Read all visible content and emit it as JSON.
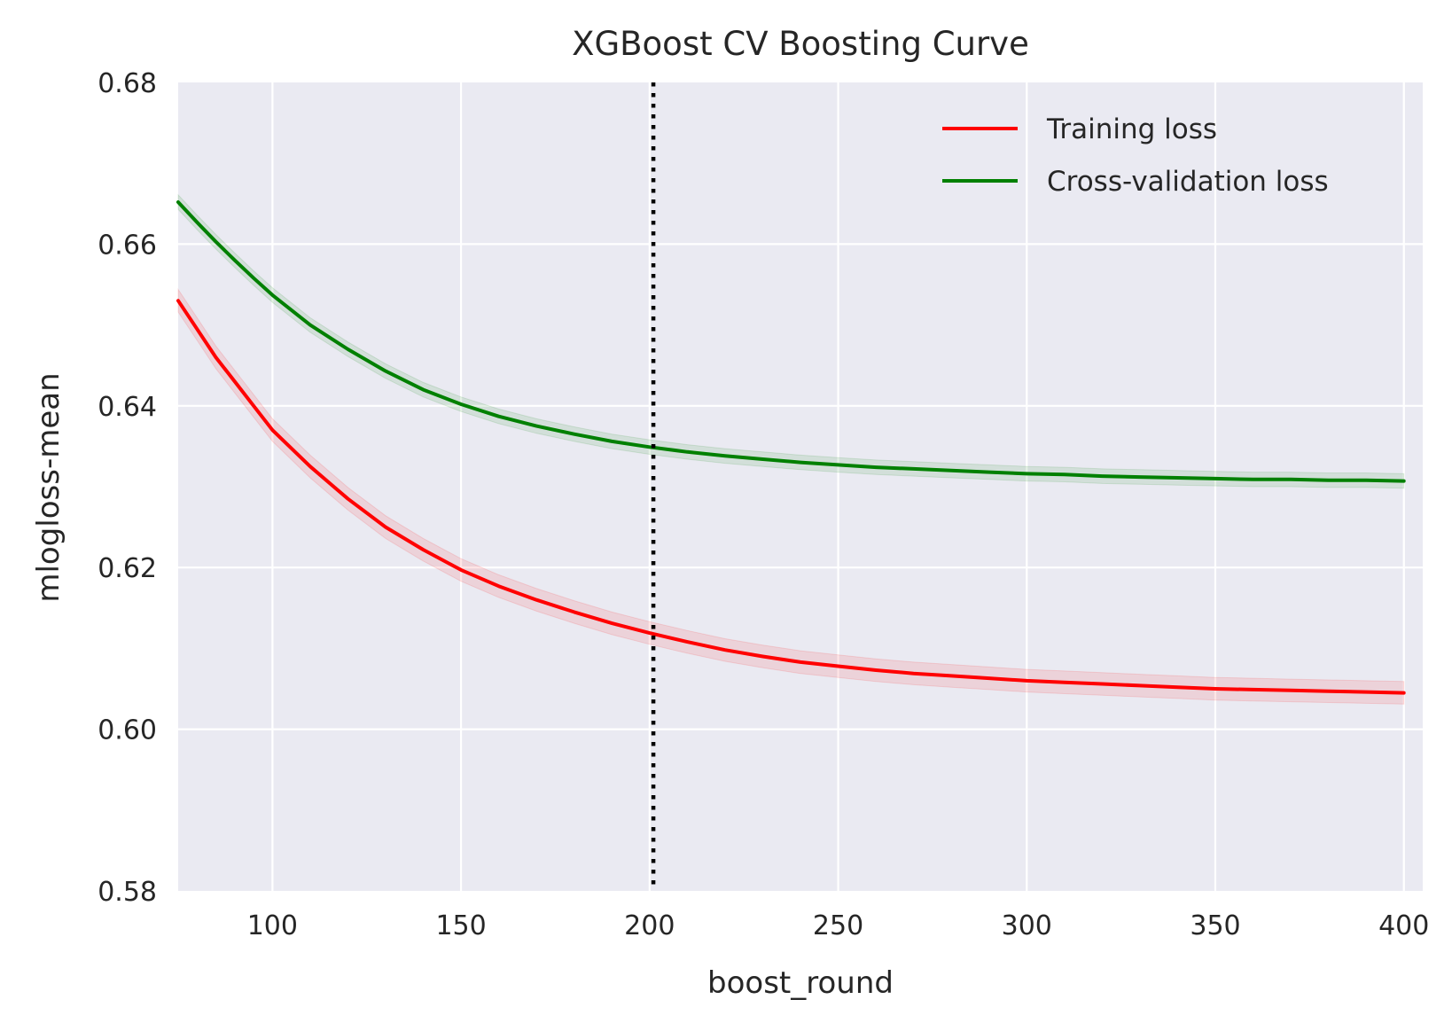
{
  "chart_data": {
    "type": "line",
    "title": "XGBoost CV Boosting Curve",
    "xlabel": "boost_round",
    "ylabel": "mlogloss-mean",
    "xlim": [
      75,
      405
    ],
    "ylim": [
      0.58,
      0.68
    ],
    "x_ticks": [
      100,
      150,
      200,
      250,
      300,
      350,
      400
    ],
    "x_tick_labels": [
      "100",
      "150",
      "200",
      "250",
      "300",
      "350",
      "400"
    ],
    "y_ticks": [
      0.58,
      0.6,
      0.62,
      0.64,
      0.66,
      0.68
    ],
    "y_tick_labels": [
      "0.58",
      "0.60",
      "0.62",
      "0.64",
      "0.66",
      "0.68"
    ],
    "grid": true,
    "background": "#eaeaf2",
    "legend_position": "top-right",
    "vline": {
      "x": 201,
      "color": "#000000",
      "style": "dotted"
    },
    "series": [
      {
        "name": "Training loss",
        "color": "#ff0000",
        "band_std": 0.0014,
        "x": [
          75,
          80,
          85,
          90,
          95,
          100,
          110,
          120,
          130,
          140,
          150,
          160,
          170,
          180,
          190,
          200,
          210,
          220,
          230,
          240,
          250,
          260,
          270,
          280,
          290,
          300,
          310,
          320,
          330,
          340,
          350,
          360,
          370,
          380,
          390,
          400
        ],
        "y": [
          0.653,
          0.6495,
          0.646,
          0.643,
          0.64,
          0.637,
          0.6325,
          0.6285,
          0.625,
          0.6222,
          0.6197,
          0.6177,
          0.616,
          0.6145,
          0.6131,
          0.6119,
          0.6108,
          0.6098,
          0.609,
          0.6083,
          0.6078,
          0.6073,
          0.6069,
          0.6066,
          0.6063,
          0.606,
          0.6058,
          0.6056,
          0.6054,
          0.6052,
          0.605,
          0.6049,
          0.6048,
          0.6047,
          0.6046,
          0.6045
        ]
      },
      {
        "name": "Cross-validation loss",
        "color": "#008000",
        "band_std": 0.0009,
        "x": [
          75,
          80,
          85,
          90,
          95,
          100,
          110,
          120,
          130,
          140,
          150,
          160,
          170,
          180,
          190,
          200,
          210,
          220,
          230,
          240,
          250,
          260,
          270,
          280,
          290,
          300,
          310,
          320,
          330,
          340,
          350,
          360,
          370,
          380,
          390,
          400
        ],
        "y": [
          0.6652,
          0.6627,
          0.6603,
          0.658,
          0.6558,
          0.6537,
          0.65,
          0.647,
          0.6443,
          0.642,
          0.6402,
          0.6387,
          0.6375,
          0.6365,
          0.6356,
          0.6349,
          0.6343,
          0.6338,
          0.6334,
          0.633,
          0.6327,
          0.6324,
          0.6322,
          0.632,
          0.6318,
          0.6316,
          0.6315,
          0.6313,
          0.6312,
          0.6311,
          0.631,
          0.6309,
          0.6309,
          0.6308,
          0.6308,
          0.6307
        ]
      }
    ]
  }
}
